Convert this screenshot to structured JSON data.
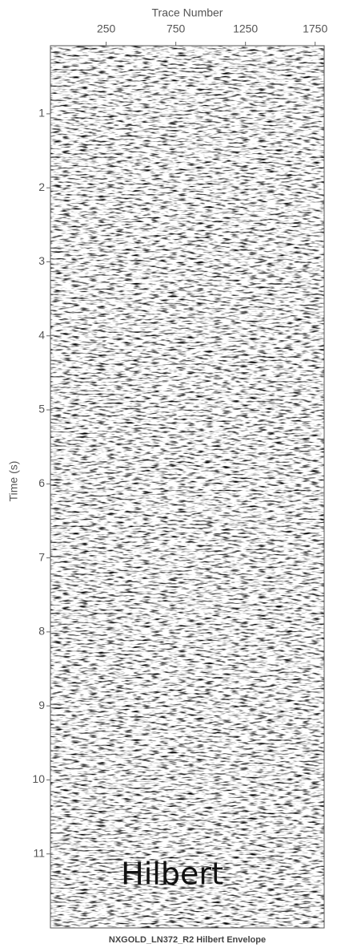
{
  "chart_data": {
    "type": "seismic",
    "title": "NXGOLD_LN372_R2 Hilbert Envelope",
    "xlabel": "Trace Number",
    "ylabel": "Time (s)",
    "annotation": "Hilbert",
    "xlim": [
      -150,
      1815
    ],
    "xticks": [
      250,
      750,
      1250,
      1750
    ],
    "ylim": [
      0.08,
      12
    ],
    "yticks": [
      1,
      2,
      3,
      4,
      5,
      6,
      7,
      8,
      9,
      10,
      11
    ],
    "x_axis_position": "top",
    "y_inverted": true
  }
}
